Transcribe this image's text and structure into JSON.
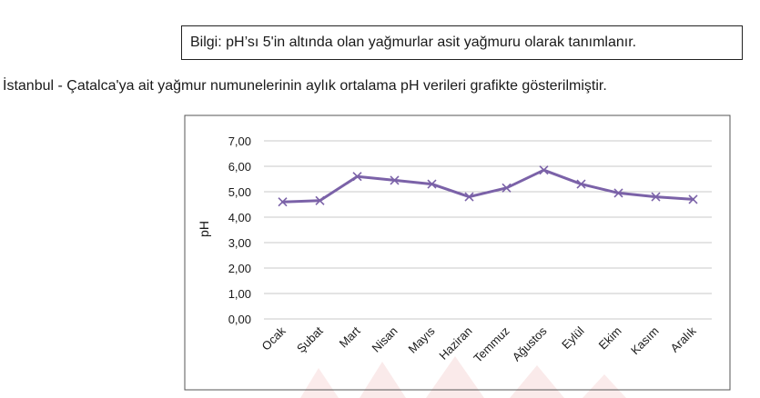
{
  "info": "Bilgi: pH’sı 5'in altında olan yağmurlar asit yağmuru olarak tanımlanır.",
  "intro": "İstanbul - Çatalca'ya ait yağmur numunelerinin aylık ortalama pH verileri grafikte gösterilmiştir.",
  "chart_data": {
    "type": "line",
    "title": "",
    "xlabel": "",
    "ylabel": "pH",
    "ylim": [
      0,
      7
    ],
    "yticks": [
      "0,00",
      "1,00",
      "2,00",
      "3,00",
      "4,00",
      "5,00",
      "6,00",
      "7,00"
    ],
    "categories": [
      "Ocak",
      "Şubat",
      "Mart",
      "Nisan",
      "Mayıs",
      "Haziran",
      "Temmuz",
      "Ağustos",
      "Eylül",
      "Ekim",
      "Kasım",
      "Aralık"
    ],
    "series": [
      {
        "values": [
          4.6,
          4.65,
          5.6,
          5.45,
          5.3,
          4.8,
          5.15,
          5.85,
          5.3,
          4.95,
          4.8,
          4.7
        ],
        "color": "#7b62a8",
        "marker": "x"
      }
    ],
    "grid": true,
    "legend": "none"
  },
  "colors": {
    "line": "#7b62a8",
    "grid": "#c8c8c8",
    "watermark": "#f2c9c9"
  }
}
